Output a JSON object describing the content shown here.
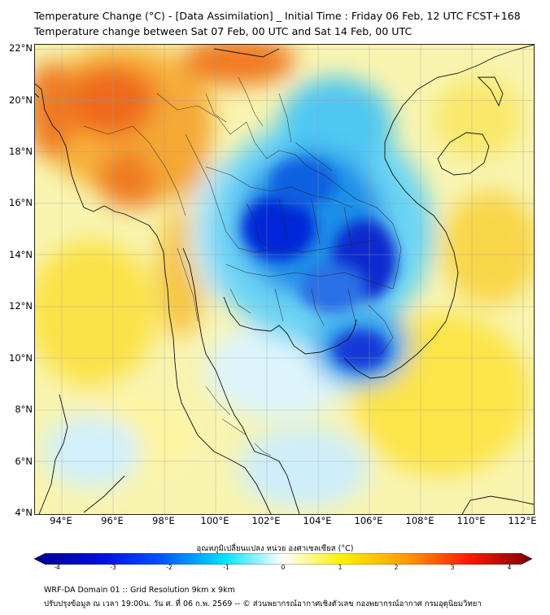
{
  "title": {
    "line1": "Temperature Change (°C) - [Data Assimilation] _ Initial Time : Friday 06 Feb, 12 UTC FCST+168",
    "line2": "Temperature change between Sat 07 Feb, 00 UTC and Sat 14 Feb, 00 UTC"
  },
  "map": {
    "lat_labels": [
      "22°N",
      "20°N",
      "18°N",
      "16°N",
      "14°N",
      "12°N",
      "10°N",
      "8°N",
      "6°N",
      "4°N"
    ],
    "lon_labels": [
      "94°E",
      "96°E",
      "98°E",
      "100°E",
      "102°E",
      "104°E",
      "106°E",
      "108°E",
      "110°E",
      "112°E"
    ],
    "lat_range": [
      4,
      22.2
    ],
    "lon_range": [
      93,
      112.5
    ]
  },
  "colorbar": {
    "title": "อุณหภูมิเปลี่ยนแปลง หน่วย องศาเซลเซียส (°C)",
    "ticks": [
      "-4",
      "-3",
      "-2",
      "-1",
      "0",
      "1",
      "2",
      "3",
      "4"
    ],
    "colors": {
      "deep_blue": "#00008b",
      "blue": "#0033ff",
      "cyan": "#00e5ff",
      "white": "#ffffff",
      "yellow": "#fff000",
      "orange": "#ff8000",
      "red": "#ff0000",
      "dark_red": "#7a0000"
    }
  },
  "footer": {
    "line1": "WRF-DA Domain 01 :: Grid Resolution 9km x 9km",
    "line2": "ปรับปรุงข้อมูล ณ เวลา 19:00น. วัน ศ. ที่ 06 ก.พ. 2569 -- © ส่วนพยากรณ์อากาศเชิงตัวเลข กองพยากรณ์อากาศ กรมอุตุนิยมวิทยา"
  }
}
